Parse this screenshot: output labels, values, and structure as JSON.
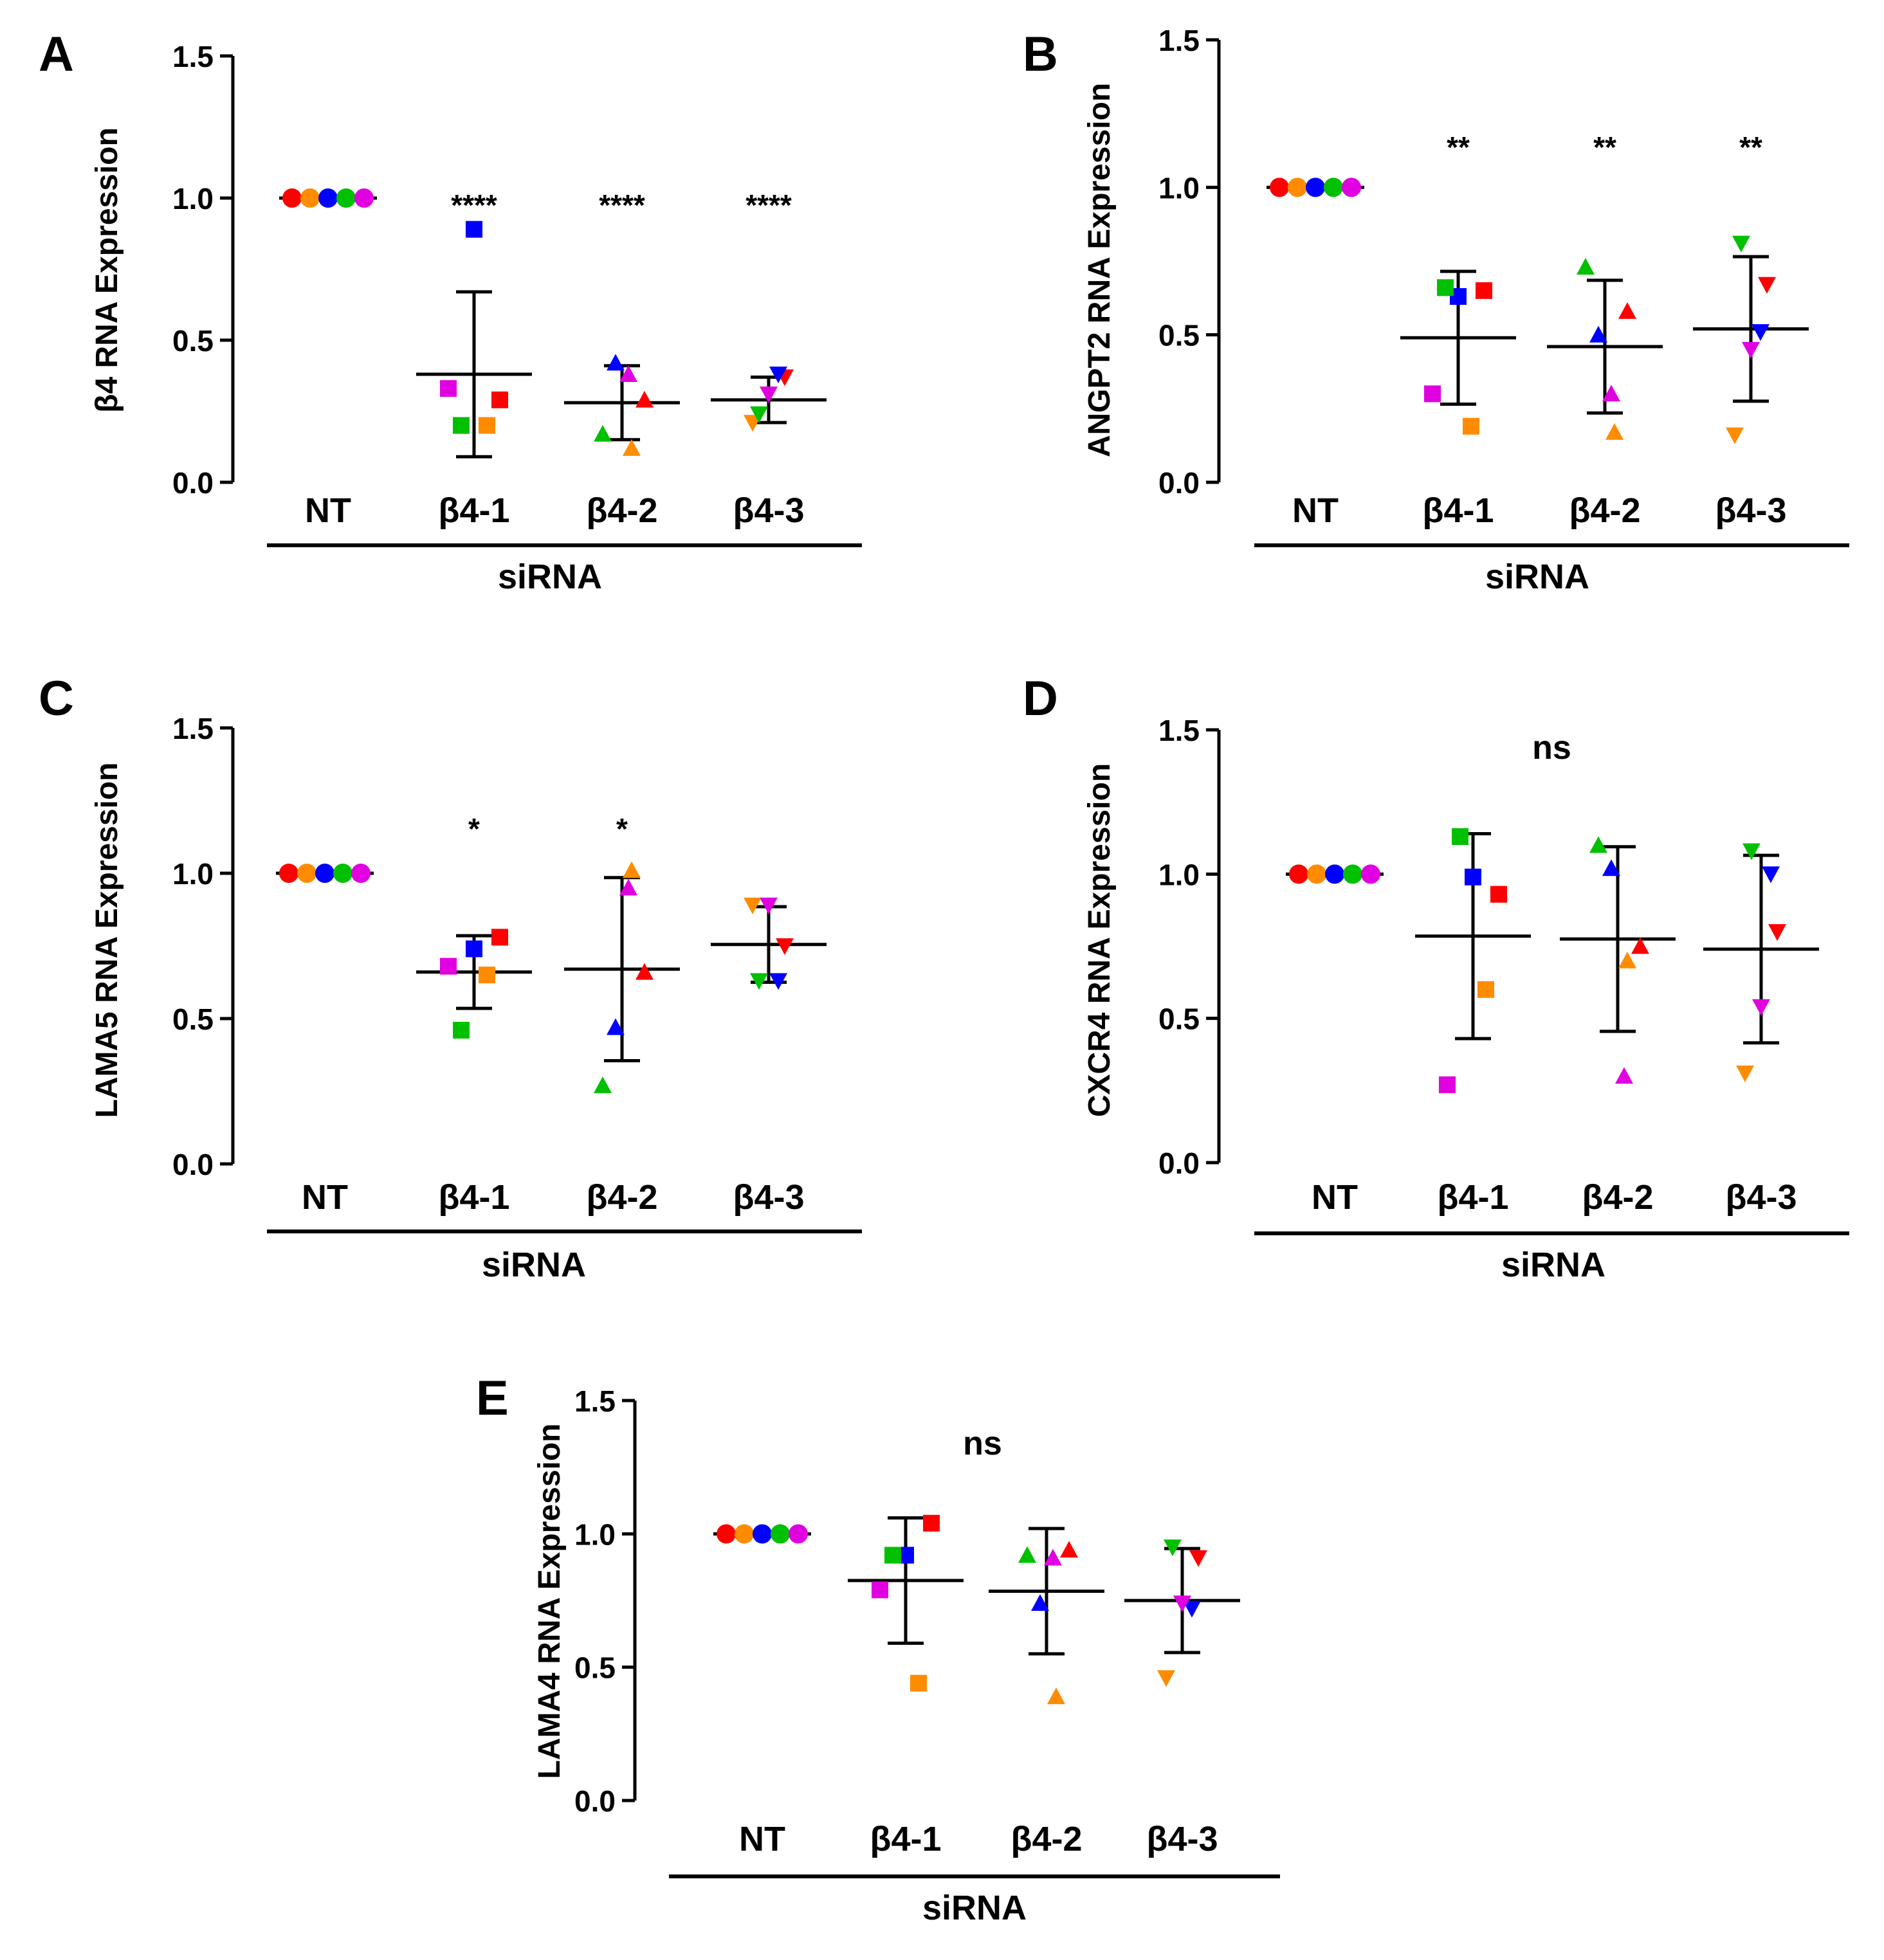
{
  "figure": {
    "shared": {
      "categories": [
        "NT",
        "β4-1",
        "β4-2",
        "β4-3"
      ],
      "group_label": "siRNA",
      "yticks": [
        "0.0",
        "0.5",
        "1.0",
        "1.5"
      ],
      "replicate_colors": [
        "#ff0000",
        "#ff8c00",
        "#0000ff",
        "#00c000",
        "#e000e0"
      ],
      "replicate_order": [
        "red",
        "orange",
        "blue",
        "green",
        "magenta"
      ],
      "marker_shapes": [
        "circle",
        "square",
        "triangle-up",
        "triangle-down"
      ]
    }
  },
  "chart_data": [
    {
      "panel": "A",
      "type": "scatter",
      "ylabel": "β4 RNA  Expression",
      "xlabel": "siRNA",
      "categories": [
        "NT",
        "β4-1",
        "β4-2",
        "β4-3"
      ],
      "ylim": [
        0,
        1.5
      ],
      "points": [
        [
          1,
          1,
          1,
          1,
          1
        ],
        [
          0.29,
          0.2,
          0.89,
          0.2,
          0.33
        ],
        [
          0.29,
          0.12,
          0.42,
          0.17,
          0.38
        ],
        [
          0.37,
          0.21,
          0.38,
          0.24,
          0.31
        ]
      ],
      "mean": [
        1.0,
        0.38,
        0.28,
        0.29
      ],
      "sd": [
        0.0,
        0.29,
        0.13,
        0.08
      ],
      "significance": [
        "",
        "****",
        "****",
        "****"
      ]
    },
    {
      "panel": "B",
      "type": "scatter",
      "ylabel": "ANGPT2  RNA  Expression",
      "xlabel": "siRNA",
      "categories": [
        "NT",
        "β4-1",
        "β4-2",
        "β4-3"
      ],
      "ylim": [
        0,
        1.5
      ],
      "points": [
        [
          1,
          1,
          1,
          1,
          1
        ],
        [
          0.65,
          0.19,
          0.63,
          0.66,
          0.3
        ],
        [
          0.58,
          0.17,
          0.5,
          0.73,
          0.3
        ],
        [
          0.67,
          0.16,
          0.51,
          0.81,
          0.45
        ]
      ],
      "mean": [
        1.0,
        0.49,
        0.46,
        0.52
      ],
      "sd": [
        0.0,
        0.225,
        0.225,
        0.245
      ],
      "significance": [
        "",
        "**",
        "**",
        "**"
      ]
    },
    {
      "panel": "C",
      "type": "scatter",
      "ylabel": "LAMA5  RNA  Expression",
      "xlabel": "siRNA",
      "categories": [
        "NT",
        "β4-1",
        "β4-2",
        "β4-3"
      ],
      "ylim": [
        0,
        1.5
      ],
      "points": [
        [
          1,
          1,
          1,
          1,
          1
        ],
        [
          0.78,
          0.65,
          0.74,
          0.46,
          0.68
        ],
        [
          0.66,
          1.01,
          0.47,
          0.27,
          0.95
        ],
        [
          0.75,
          0.89,
          0.63,
          0.63,
          0.89
        ]
      ],
      "mean": [
        1.0,
        0.66,
        0.67,
        0.755
      ],
      "sd": [
        0.0,
        0.125,
        0.315,
        0.13
      ],
      "significance": [
        "",
        "*",
        "*",
        ""
      ]
    },
    {
      "panel": "D",
      "type": "scatter",
      "ylabel": "CXCR4  RNA  Expression",
      "xlabel": "siRNA",
      "categories": [
        "NT",
        "β4-1",
        "β4-2",
        "β4-3"
      ],
      "ylim": [
        0,
        1.5
      ],
      "points": [
        [
          1,
          1,
          1,
          1,
          1
        ],
        [
          0.93,
          0.6,
          0.99,
          1.13,
          0.27
        ],
        [
          0.75,
          0.7,
          1.02,
          1.1,
          0.3
        ],
        [
          0.8,
          0.31,
          1.0,
          1.08,
          0.54
        ]
      ],
      "mean": [
        1.0,
        0.785,
        0.775,
        0.74
      ],
      "sd": [
        0.0,
        0.355,
        0.32,
        0.325
      ],
      "annotation": "ns"
    },
    {
      "panel": "E",
      "type": "scatter",
      "ylabel": "LAMA4  RNA  Expression",
      "xlabel": "siRNA",
      "categories": [
        "NT",
        "β4-1",
        "β4-2",
        "β4-3"
      ],
      "ylim": [
        0,
        1.5
      ],
      "points": [
        [
          1,
          1,
          1,
          1,
          1
        ],
        [
          1.04,
          0.44,
          0.92,
          0.92,
          0.79
        ],
        [
          0.94,
          0.39,
          0.74,
          0.92,
          0.91
        ],
        [
          0.91,
          0.46,
          0.72,
          0.95,
          0.74
        ]
      ],
      "mean": [
        1.0,
        0.825,
        0.785,
        0.75
      ],
      "sd": [
        0.0,
        0.235,
        0.235,
        0.195
      ],
      "annotation": "ns"
    }
  ]
}
